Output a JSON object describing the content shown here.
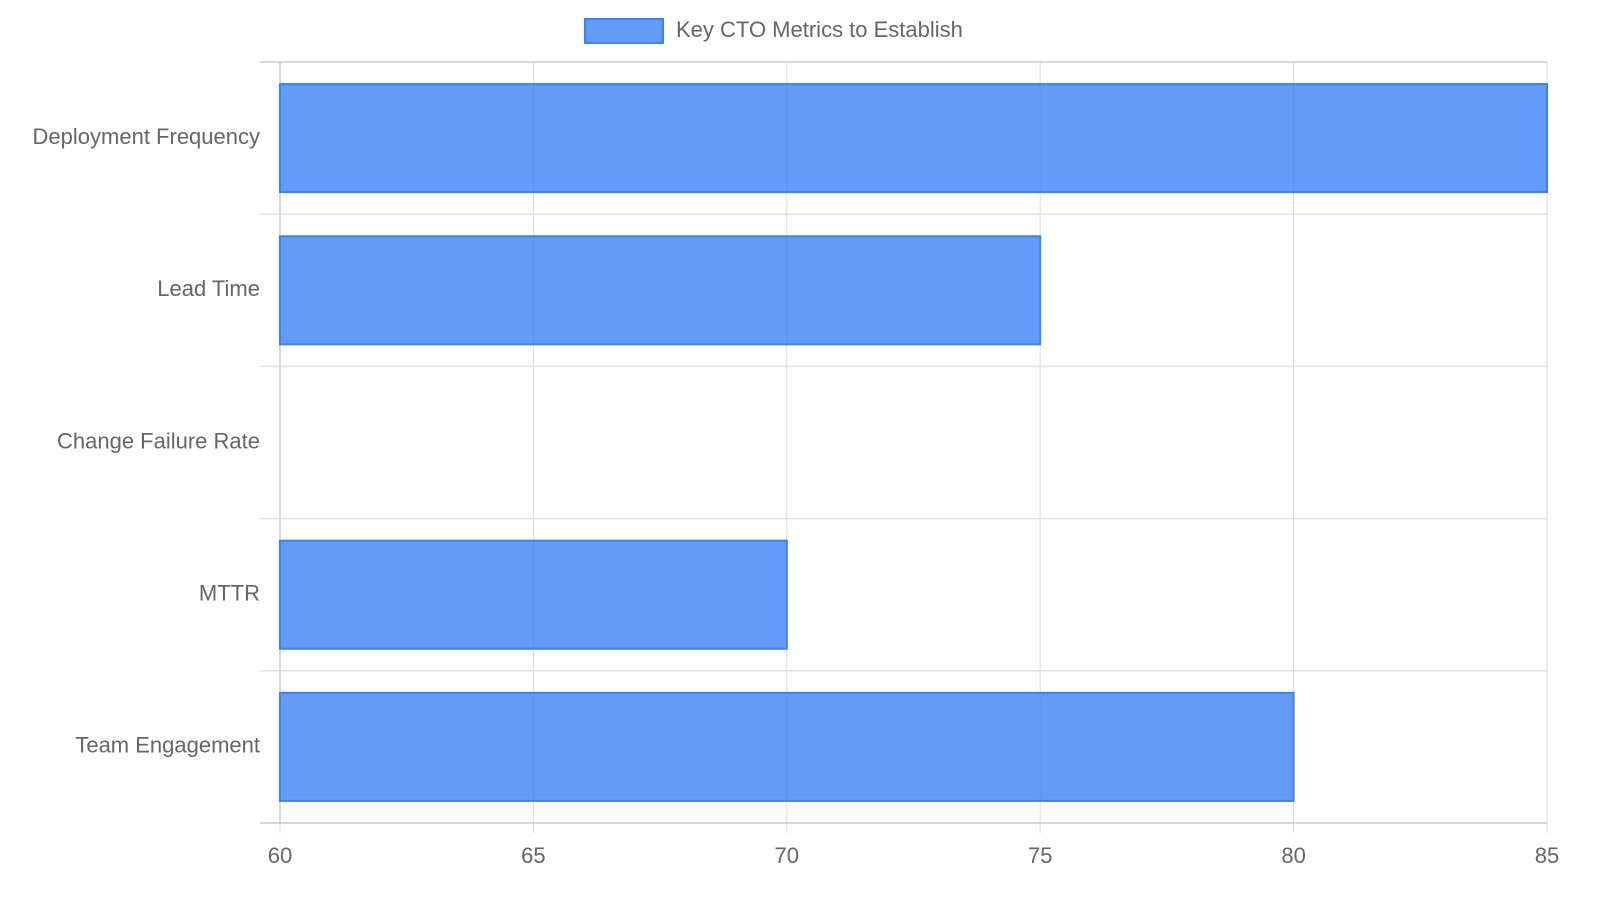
{
  "chart_data": {
    "type": "hbar",
    "categories": [
      "Deployment Frequency",
      "Lead Time",
      "Change Failure Rate",
      "MTTR",
      "Team Engagement"
    ],
    "series": [
      {
        "name": "Key CTO Metrics to Establish",
        "color": "#3b82f6",
        "values": [
          85,
          75,
          60,
          70,
          80
        ]
      }
    ],
    "xlim": [
      60,
      85
    ],
    "xticks": [
      60,
      65,
      70,
      75,
      80,
      85
    ],
    "grid": true,
    "legend": "top"
  }
}
